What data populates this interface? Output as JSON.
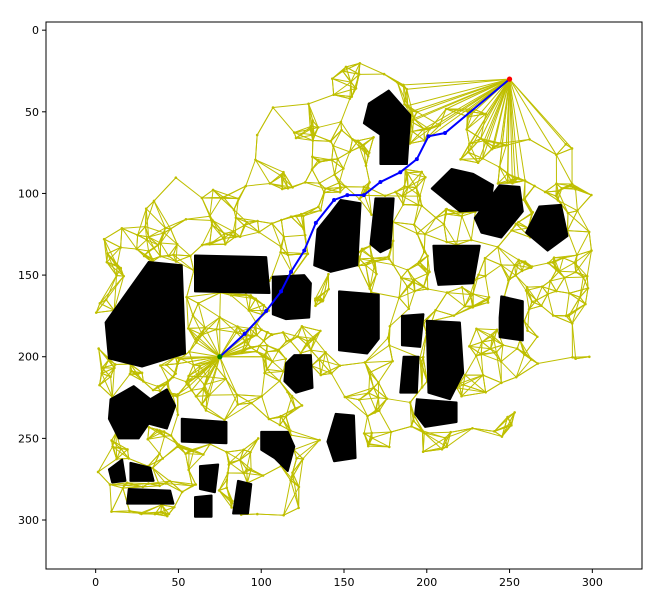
{
  "chart_data": {
    "type": "scatter",
    "title": "",
    "xlabel": "",
    "ylabel": "",
    "xlim": [
      -30,
      330
    ],
    "ylim": [
      330,
      -5
    ],
    "y_inverted": true,
    "grid": false,
    "xticks": [
      0,
      50,
      100,
      150,
      200,
      250,
      300
    ],
    "yticks": [
      0,
      50,
      100,
      150,
      200,
      250,
      300
    ],
    "colors": {
      "roadmap": "#bfbf00",
      "obstacles": "#000000",
      "path": "#0000ff",
      "start": "#008000",
      "goal": "#ff0000"
    },
    "start": {
      "x": 75,
      "y": 200
    },
    "goal": {
      "x": 250,
      "y": 30
    },
    "path": [
      {
        "x": 75,
        "y": 200
      },
      {
        "x": 90,
        "y": 186
      },
      {
        "x": 103,
        "y": 172
      },
      {
        "x": 112,
        "y": 160
      },
      {
        "x": 118,
        "y": 148
      },
      {
        "x": 126,
        "y": 135
      },
      {
        "x": 133,
        "y": 118
      },
      {
        "x": 144,
        "y": 104
      },
      {
        "x": 152,
        "y": 101
      },
      {
        "x": 162,
        "y": 101
      },
      {
        "x": 172,
        "y": 93
      },
      {
        "x": 184,
        "y": 87
      },
      {
        "x": 194,
        "y": 79
      },
      {
        "x": 201,
        "y": 65
      },
      {
        "x": 211,
        "y": 63
      },
      {
        "x": 250,
        "y": 30
      }
    ],
    "obstacles": [
      {
        "polygon": [
          [
            165,
            45
          ],
          [
            177,
            37
          ],
          [
            190,
            52
          ],
          [
            188,
            82
          ],
          [
            172,
            82
          ],
          [
            172,
            64
          ],
          [
            162,
            57
          ]
        ]
      },
      {
        "polygon": [
          [
            142,
            112
          ],
          [
            148,
            104
          ],
          [
            160,
            106
          ],
          [
            158,
            144
          ],
          [
            142,
            148
          ],
          [
            132,
            144
          ],
          [
            134,
            122
          ]
        ]
      },
      {
        "polygon": [
          [
            169,
            103
          ],
          [
            180,
            103
          ],
          [
            178,
            133
          ],
          [
            172,
            136
          ],
          [
            166,
            131
          ]
        ]
      },
      {
        "polygon": [
          [
            107,
            151
          ],
          [
            126,
            150
          ],
          [
            130,
            155
          ],
          [
            129,
            176
          ],
          [
            115,
            177
          ],
          [
            107,
            174
          ]
        ]
      },
      {
        "polygon": [
          [
            60,
            138
          ],
          [
            103,
            139
          ],
          [
            105,
            161
          ],
          [
            60,
            160
          ]
        ]
      },
      {
        "polygon": [
          [
            6,
            179
          ],
          [
            32,
            142
          ],
          [
            52,
            144
          ],
          [
            54,
            198
          ],
          [
            28,
            206
          ],
          [
            8,
            201
          ]
        ]
      },
      {
        "polygon": [
          [
            9,
            226
          ],
          [
            23,
            218
          ],
          [
            33,
            226
          ],
          [
            43,
            220
          ],
          [
            48,
            230
          ],
          [
            43,
            244
          ],
          [
            32,
            241
          ],
          [
            26,
            250
          ],
          [
            14,
            250
          ],
          [
            8,
            238
          ]
        ]
      },
      {
        "polygon": [
          [
            52,
            238
          ],
          [
            79,
            240
          ],
          [
            79,
            253
          ],
          [
            52,
            252
          ]
        ]
      },
      {
        "polygon": [
          [
            147,
            160
          ],
          [
            171,
            162
          ],
          [
            171,
            189
          ],
          [
            164,
            198
          ],
          [
            147,
            196
          ]
        ]
      },
      {
        "polygon": [
          [
            120,
            199
          ],
          [
            130,
            199
          ],
          [
            131,
            219
          ],
          [
            121,
            222
          ],
          [
            114,
            215
          ],
          [
            115,
            204
          ]
        ]
      },
      {
        "polygon": [
          [
            100,
            246
          ],
          [
            116,
            246
          ],
          [
            120,
            255
          ],
          [
            116,
            270
          ],
          [
            108,
            262
          ],
          [
            100,
            257
          ]
        ]
      },
      {
        "polygon": [
          [
            145,
            235
          ],
          [
            156,
            236
          ],
          [
            157,
            262
          ],
          [
            144,
            264
          ],
          [
            140,
            252
          ]
        ]
      },
      {
        "polygon": [
          [
            185,
            175
          ],
          [
            198,
            174
          ],
          [
            196,
            194
          ],
          [
            185,
            193
          ]
        ]
      },
      {
        "polygon": [
          [
            186,
            200
          ],
          [
            195,
            200
          ],
          [
            194,
            222
          ],
          [
            184,
            222
          ]
        ]
      },
      {
        "polygon": [
          [
            200,
            178
          ],
          [
            220,
            179
          ],
          [
            222,
            210
          ],
          [
            214,
            226
          ],
          [
            201,
            222
          ]
        ]
      },
      {
        "polygon": [
          [
            194,
            226
          ],
          [
            218,
            228
          ],
          [
            218,
            240
          ],
          [
            199,
            243
          ],
          [
            193,
            235
          ]
        ]
      },
      {
        "polygon": [
          [
            204,
            132
          ],
          [
            232,
            132
          ],
          [
            228,
            155
          ],
          [
            207,
            156
          ],
          [
            205,
            147
          ]
        ]
      },
      {
        "polygon": [
          [
            215,
            85
          ],
          [
            228,
            88
          ],
          [
            240,
            95
          ],
          [
            238,
            110
          ],
          [
            220,
            111
          ],
          [
            203,
            97
          ]
        ]
      },
      {
        "polygon": [
          [
            244,
            95
          ],
          [
            256,
            96
          ],
          [
            258,
            111
          ],
          [
            245,
            127
          ],
          [
            233,
            124
          ],
          [
            229,
            115
          ]
        ]
      },
      {
        "polygon": [
          [
            268,
            108
          ],
          [
            281,
            107
          ],
          [
            285,
            126
          ],
          [
            273,
            135
          ],
          [
            260,
            124
          ]
        ]
      },
      {
        "polygon": [
          [
            245,
            163
          ],
          [
            258,
            166
          ],
          [
            258,
            190
          ],
          [
            244,
            188
          ],
          [
            244,
            176
          ]
        ]
      },
      {
        "polygon": [
          [
            8,
            269
          ],
          [
            16,
            263
          ],
          [
            18,
            276
          ],
          [
            10,
            277
          ]
        ]
      },
      {
        "polygon": [
          [
            21,
            265
          ],
          [
            33,
            268
          ],
          [
            35,
            276
          ],
          [
            21,
            276
          ]
        ]
      },
      {
        "polygon": [
          [
            20,
            281
          ],
          [
            45,
            282
          ],
          [
            47,
            290
          ],
          [
            19,
            290
          ]
        ]
      },
      {
        "polygon": [
          [
            63,
            267
          ],
          [
            74,
            266
          ],
          [
            72,
            283
          ],
          [
            63,
            281
          ]
        ]
      },
      {
        "polygon": [
          [
            60,
            286
          ],
          [
            70,
            285
          ],
          [
            70,
            298
          ],
          [
            60,
            298
          ]
        ]
      },
      {
        "polygon": [
          [
            86,
            276
          ],
          [
            94,
            278
          ],
          [
            92,
            296
          ],
          [
            83,
            296
          ]
        ]
      }
    ],
    "roadmap_cluster_centers": [
      {
        "x": 20,
        "y": 150
      },
      {
        "x": 60,
        "y": 120
      },
      {
        "x": 100,
        "y": 125
      },
      {
        "x": 125,
        "y": 70
      },
      {
        "x": 170,
        "y": 50
      },
      {
        "x": 215,
        "y": 75
      },
      {
        "x": 260,
        "y": 95
      },
      {
        "x": 285,
        "y": 125
      },
      {
        "x": 280,
        "y": 180
      },
      {
        "x": 230,
        "y": 170
      },
      {
        "x": 175,
        "y": 165
      },
      {
        "x": 130,
        "y": 185
      },
      {
        "x": 90,
        "y": 215
      },
      {
        "x": 40,
        "y": 230
      },
      {
        "x": 15,
        "y": 270
      },
      {
        "x": 55,
        "y": 275
      },
      {
        "x": 95,
        "y": 275
      },
      {
        "x": 140,
        "y": 235
      },
      {
        "x": 190,
        "y": 230
      },
      {
        "x": 225,
        "y": 220
      },
      {
        "x": 200,
        "y": 120
      },
      {
        "x": 150,
        "y": 125
      },
      {
        "x": 110,
        "y": 175
      },
      {
        "x": 70,
        "y": 190
      },
      {
        "x": 30,
        "y": 195
      },
      {
        "x": 250,
        "y": 140
      },
      {
        "x": 160,
        "y": 80
      }
    ]
  }
}
